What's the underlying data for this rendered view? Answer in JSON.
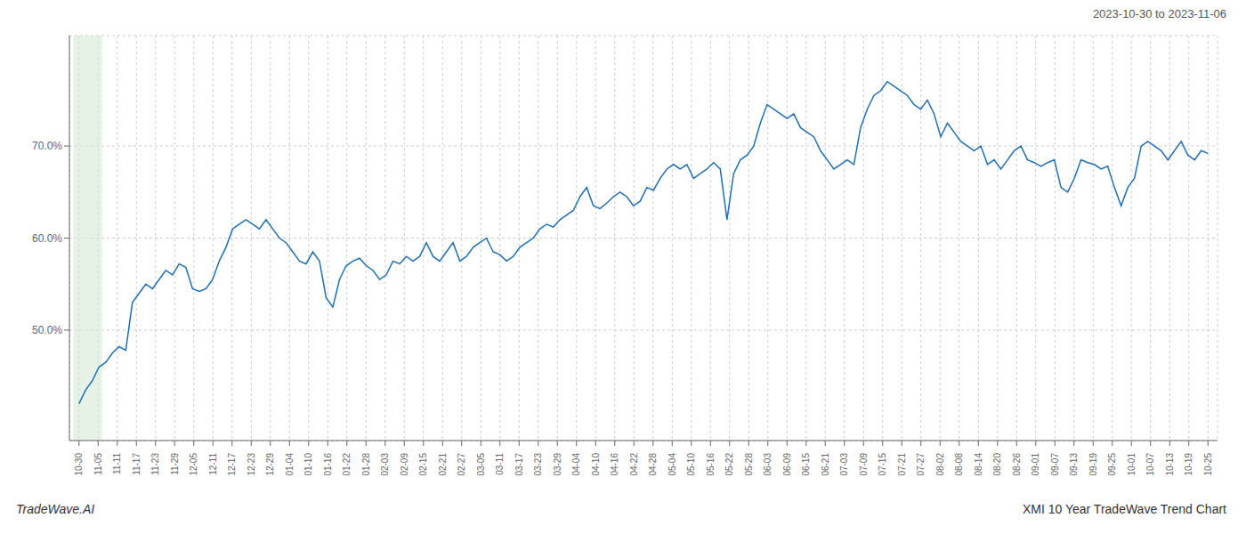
{
  "chart_data": {
    "type": "line",
    "title": "2023-10-30 to 2023-11-06",
    "annotations": [
      "TradeWave.AI",
      "XMI 10 Year TradeWave Trend Chart"
    ],
    "color": "#1f6eb5",
    "grid": true,
    "xlim": [
      -0.5,
      59.5
    ],
    "xticks": [
      {
        "value": 0,
        "label": "10-30"
      },
      {
        "value": 1,
        "label": "11-05"
      },
      {
        "value": 2,
        "label": "11-11"
      },
      {
        "value": 3,
        "label": "11-17"
      },
      {
        "value": 4,
        "label": "11-23"
      },
      {
        "value": 5,
        "label": "11-29"
      },
      {
        "value": 6,
        "label": "12-05"
      },
      {
        "value": 7,
        "label": "12-11"
      },
      {
        "value": 8,
        "label": "12-17"
      },
      {
        "value": 9,
        "label": "12-23"
      },
      {
        "value": 10,
        "label": "12-29"
      },
      {
        "value": 11,
        "label": "01-04"
      },
      {
        "value": 12,
        "label": "01-10"
      },
      {
        "value": 13,
        "label": "01-16"
      },
      {
        "value": 14,
        "label": "01-22"
      },
      {
        "value": 15,
        "label": "01-28"
      },
      {
        "value": 16,
        "label": "02-03"
      },
      {
        "value": 17,
        "label": "02-09"
      },
      {
        "value": 18,
        "label": "02-15"
      },
      {
        "value": 19,
        "label": "02-21"
      },
      {
        "value": 20,
        "label": "02-27"
      },
      {
        "value": 21,
        "label": "03-05"
      },
      {
        "value": 22,
        "label": "03-11"
      },
      {
        "value": 23,
        "label": "03-17"
      },
      {
        "value": 24,
        "label": "03-23"
      },
      {
        "value": 25,
        "label": "03-29"
      },
      {
        "value": 26,
        "label": "04-04"
      },
      {
        "value": 27,
        "label": "04-10"
      },
      {
        "value": 28,
        "label": "04-16"
      },
      {
        "value": 29,
        "label": "04-22"
      },
      {
        "value": 30,
        "label": "04-28"
      },
      {
        "value": 31,
        "label": "05-04"
      },
      {
        "value": 32,
        "label": "05-10"
      },
      {
        "value": 33,
        "label": "05-16"
      },
      {
        "value": 34,
        "label": "05-22"
      },
      {
        "value": 35,
        "label": "05-28"
      },
      {
        "value": 36,
        "label": "06-03"
      },
      {
        "value": 37,
        "label": "06-09"
      },
      {
        "value": 38,
        "label": "06-15"
      },
      {
        "value": 39,
        "label": "06-21"
      },
      {
        "value": 40,
        "label": "07-03"
      },
      {
        "value": 41,
        "label": "07-09"
      },
      {
        "value": 42,
        "label": "07-15"
      },
      {
        "value": 43,
        "label": "07-21"
      },
      {
        "value": 44,
        "label": "07-27"
      },
      {
        "value": 45,
        "label": "08-02"
      },
      {
        "value": 46,
        "label": "08-08"
      },
      {
        "value": 47,
        "label": "08-14"
      },
      {
        "value": 48,
        "label": "08-20"
      },
      {
        "value": 49,
        "label": "08-26"
      },
      {
        "value": 50,
        "label": "09-01"
      },
      {
        "value": 51,
        "label": "09-07"
      },
      {
        "value": 52,
        "label": "09-13"
      },
      {
        "value": 53,
        "label": "09-19"
      },
      {
        "value": 54,
        "label": "09-25"
      },
      {
        "value": 55,
        "label": "10-01"
      },
      {
        "value": 56,
        "label": "10-07"
      },
      {
        "value": 57,
        "label": "10-13"
      },
      {
        "value": 58,
        "label": "10-19"
      },
      {
        "value": 59,
        "label": "10-25"
      }
    ],
    "ylim": [
      38,
      82
    ],
    "yticks": [
      {
        "value": 50,
        "label": "50.0%"
      },
      {
        "value": 60,
        "label": "60.0%"
      },
      {
        "value": 70,
        "label": "70.0%"
      }
    ],
    "shade": {
      "x_start": -0.3,
      "x_end": 1.2,
      "color": "#d6ead6"
    },
    "x": [
      0,
      0.349,
      0.698,
      1.047,
      1.396,
      1.746,
      2.095,
      2.444,
      2.793,
      3.142,
      3.491,
      3.84,
      4.189,
      4.538,
      4.888,
      5.237,
      5.586,
      5.935,
      6.284,
      6.633,
      6.982,
      7.331,
      7.68,
      8.03,
      8.379,
      8.728,
      9.077,
      9.426,
      9.775,
      10.124,
      10.473,
      10.822,
      11.172,
      11.521,
      11.87,
      12.219,
      12.568,
      12.917,
      13.266,
      13.615,
      13.964,
      14.314,
      14.663,
      15.012,
      15.361,
      15.71,
      16.059,
      16.408,
      16.757,
      17.107,
      17.456,
      17.805,
      18.154,
      18.503,
      18.852,
      19.201,
      19.55,
      19.899,
      20.249,
      20.598,
      20.947,
      21.296,
      21.645,
      21.994,
      22.343,
      22.692,
      23.041,
      23.391,
      23.74,
      24.089,
      24.438,
      24.787,
      25.136,
      25.485,
      25.834,
      26.183,
      26.533,
      26.882,
      27.231,
      27.58,
      27.929,
      28.278,
      28.627,
      28.976,
      29.325,
      29.675,
      30.024,
      30.373,
      30.722,
      31.071,
      31.42,
      31.769,
      32.118,
      32.467,
      32.817,
      33.166,
      33.515,
      33.864,
      34.213,
      34.562,
      34.911,
      35.26,
      35.609,
      35.959,
      36.308,
      36.657,
      37.006,
      37.355,
      37.704,
      38.053,
      38.402,
      38.751,
      39.101,
      39.45,
      39.799,
      40.148,
      40.497,
      40.846,
      41.195,
      41.544,
      41.893,
      42.243,
      42.592,
      42.941,
      43.29,
      43.639,
      43.988,
      44.337,
      44.686,
      45.036,
      45.385,
      45.734,
      46.083,
      46.432,
      46.781,
      47.13,
      47.479,
      47.828,
      48.178,
      48.527,
      48.876,
      49.225,
      49.574,
      49.923,
      50.272,
      50.621,
      50.97,
      51.32,
      51.669,
      52.018,
      52.367,
      52.716,
      53.065,
      53.414,
      53.763,
      54.112,
      54.462,
      54.811,
      55.16,
      55.509,
      55.858,
      56.207,
      56.556,
      56.905,
      57.254,
      57.604,
      57.953,
      58.302,
      58.651,
      59
    ],
    "values": [
      42.0,
      43.5,
      44.5,
      46.0,
      46.5,
      47.5,
      48.2,
      47.8,
      53.0,
      54.0,
      55.0,
      54.5,
      55.5,
      56.5,
      56.0,
      57.2,
      56.8,
      54.5,
      54.2,
      54.5,
      55.5,
      57.5,
      59.0,
      61.0,
      61.5,
      62.0,
      61.5,
      61.0,
      62.0,
      61.0,
      60.0,
      59.5,
      58.5,
      57.5,
      57.2,
      58.5,
      57.5,
      53.5,
      52.5,
      55.5,
      57.0,
      57.5,
      57.8,
      57.0,
      56.5,
      55.5,
      56.0,
      57.5,
      57.2,
      58.0,
      57.5,
      58.0,
      59.5,
      58.0,
      57.5,
      58.5,
      59.5,
      57.5,
      58.0,
      59.0,
      59.5,
      60.0,
      58.5,
      58.2,
      57.5,
      58.0,
      59.0,
      59.5,
      60.0,
      61.0,
      61.5,
      61.2,
      62.0,
      62.5,
      63.0,
      64.5,
      65.5,
      63.5,
      63.2,
      63.8,
      64.5,
      65.0,
      64.5,
      63.5,
      64.0,
      65.5,
      65.2,
      66.5,
      67.5,
      68.0,
      67.5,
      68.0,
      66.5,
      67.0,
      67.5,
      68.2,
      67.5,
      62.0,
      67.0,
      68.5,
      69.0,
      70.0,
      72.5,
      74.5,
      74.0,
      73.5,
      73.0,
      73.5,
      72.0,
      71.5,
      71.0,
      69.5,
      68.5,
      67.5,
      68.0,
      68.5,
      68.0,
      72.0,
      74.0,
      75.5,
      76.0,
      77.0,
      76.5,
      76.0,
      75.5,
      74.5,
      74.0,
      75.0,
      73.5,
      71.0,
      72.5,
      71.5,
      70.5,
      70.0,
      69.5,
      70.0,
      68.0,
      68.5,
      67.5,
      68.5,
      69.5,
      70.0,
      68.5,
      68.2,
      67.8,
      68.2,
      68.5,
      65.5,
      65.0,
      66.5,
      68.5,
      68.2,
      68.0,
      67.5,
      67.8,
      65.5,
      63.5,
      65.5,
      66.5,
      70.0,
      70.5,
      70.0,
      69.5,
      68.5,
      69.5,
      70.5,
      69.0,
      68.5,
      69.5,
      69.2
    ]
  }
}
